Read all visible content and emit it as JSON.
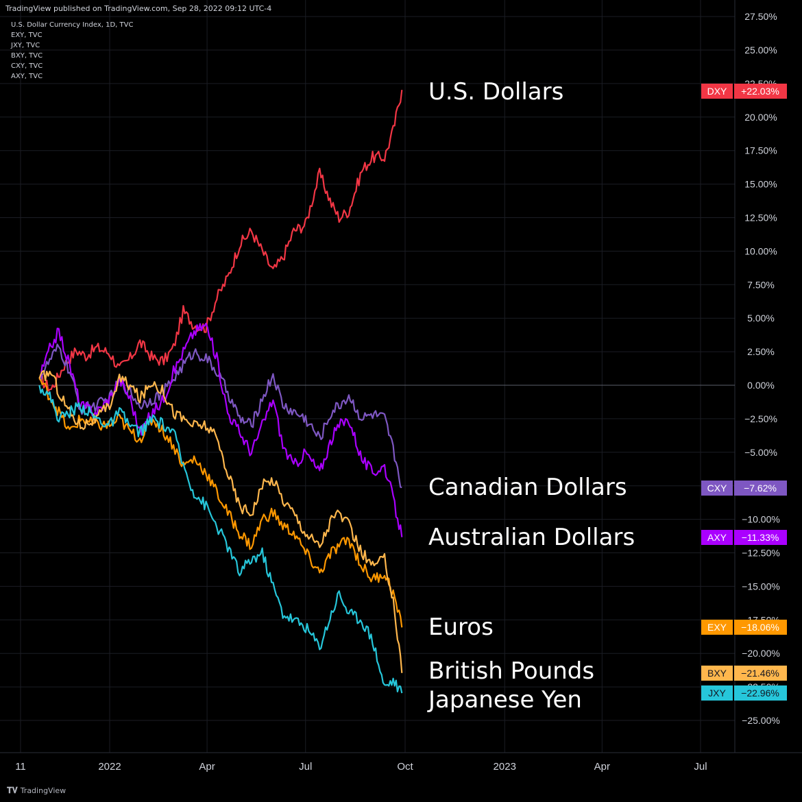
{
  "header": {
    "published": "TradingView published on TradingView.com, Sep 28, 2022 09:12 UTC-4",
    "symbols": [
      "U.S. Dollar Currency Index, 1D, TVC",
      "EXY, TVC",
      "JXY, TVC",
      "BXY, TVC",
      "CXY, TVC",
      "AXY, TVC"
    ]
  },
  "footer": {
    "brand": "TradingView",
    "logo": "tradingview-logo-icon"
  },
  "colors": {
    "background": "#000000",
    "grid": "#1b1d24",
    "zero_line": "#5d606b",
    "text": "#d1d4dc"
  },
  "chart_data": {
    "type": "line",
    "title": "",
    "xlabel": "",
    "ylabel": "",
    "y_unit": "%",
    "ylim": [
      -26,
      27
    ],
    "grid": true,
    "y_ticks": [
      "27.50%",
      "25.00%",
      "22.50%",
      "20.00%",
      "17.50%",
      "15.00%",
      "12.50%",
      "10.00%",
      "7.50%",
      "5.00%",
      "2.50%",
      "0.00%",
      "−2.50%",
      "−5.00%",
      "−7.50%",
      "−10.00%",
      "−12.50%",
      "−15.00%",
      "−17.50%",
      "−20.00%",
      "−22.50%",
      "−25.00%"
    ],
    "y_tick_values": [
      27.5,
      25,
      22.5,
      20,
      17.5,
      15,
      12.5,
      10,
      7.5,
      5,
      2.5,
      0,
      -2.5,
      -5,
      -7.5,
      -10,
      -12.5,
      -15,
      -17.5,
      -20,
      -22.5,
      -25
    ],
    "x_ticks": [
      "11",
      "2022",
      "Apr",
      "Jul",
      "Oct",
      "2023",
      "Apr",
      "Jul"
    ],
    "x_tick_dates": [
      "2021-11-01",
      "2022-01-01",
      "2022-04-01",
      "2022-07-01",
      "2022-10-01",
      "2023-01-01",
      "2023-04-01",
      "2023-07-01"
    ],
    "x_range": [
      "2021-10-28",
      "2023-08-25"
    ],
    "series": [
      {
        "name": "U.S. Dollars",
        "symbol": "DXY",
        "last": "+22.03%",
        "last_value": 22.03,
        "color": "#f23645",
        "points": [
          [
            "2021-10-28",
            0.5
          ],
          [
            "2021-11-08",
            -0.3
          ],
          [
            "2021-11-20",
            1.5
          ],
          [
            "2021-12-01",
            2.6
          ],
          [
            "2021-12-10",
            2.2
          ],
          [
            "2021-12-20",
            2.8
          ],
          [
            "2022-01-01",
            2.4
          ],
          [
            "2022-01-10",
            1.2
          ],
          [
            "2022-01-20",
            2.0
          ],
          [
            "2022-01-29",
            3.2
          ],
          [
            "2022-02-10",
            2.0
          ],
          [
            "2022-02-20",
            1.8
          ],
          [
            "2022-03-01",
            2.8
          ],
          [
            "2022-03-10",
            5.5
          ],
          [
            "2022-03-20",
            4.5
          ],
          [
            "2022-03-31",
            4.3
          ],
          [
            "2022-04-10",
            6.5
          ],
          [
            "2022-04-20",
            8.0
          ],
          [
            "2022-05-01",
            10.5
          ],
          [
            "2022-05-12",
            11.5
          ],
          [
            "2022-05-22",
            10.0
          ],
          [
            "2022-06-01",
            8.5
          ],
          [
            "2022-06-10",
            9.5
          ],
          [
            "2022-06-20",
            11.5
          ],
          [
            "2022-07-01",
            12.0
          ],
          [
            "2022-07-14",
            15.8
          ],
          [
            "2022-07-25",
            13.5
          ],
          [
            "2022-08-01",
            12.5
          ],
          [
            "2022-08-10",
            13.0
          ],
          [
            "2022-08-22",
            16.0
          ],
          [
            "2022-09-01",
            17.0
          ],
          [
            "2022-09-12",
            17.0
          ],
          [
            "2022-09-20",
            19.0
          ],
          [
            "2022-09-28",
            22.03
          ]
        ]
      },
      {
        "name": "Canadian Dollars",
        "symbol": "CXY",
        "last": "−7.62%",
        "last_value": -7.62,
        "color": "#7e57c2",
        "points": [
          [
            "2021-10-28",
            0.5
          ],
          [
            "2021-11-08",
            2.0
          ],
          [
            "2021-11-15",
            2.8
          ],
          [
            "2021-11-25",
            1.0
          ],
          [
            "2021-12-05",
            -1.8
          ],
          [
            "2021-12-20",
            -1.5
          ],
          [
            "2022-01-01",
            -1.0
          ],
          [
            "2022-01-10",
            0.3
          ],
          [
            "2022-01-20",
            -0.5
          ],
          [
            "2022-01-29",
            -1.5
          ],
          [
            "2022-02-10",
            -1.0
          ],
          [
            "2022-02-20",
            -0.5
          ],
          [
            "2022-03-01",
            0.5
          ],
          [
            "2022-03-10",
            1.5
          ],
          [
            "2022-03-20",
            2.5
          ],
          [
            "2022-03-31",
            2.0
          ],
          [
            "2022-04-10",
            1.0
          ],
          [
            "2022-04-20",
            -0.5
          ],
          [
            "2022-05-01",
            -2.5
          ],
          [
            "2022-05-12",
            -3.0
          ],
          [
            "2022-05-22",
            -1.0
          ],
          [
            "2022-06-01",
            0.8
          ],
          [
            "2022-06-10",
            -1.5
          ],
          [
            "2022-06-20",
            -2.0
          ],
          [
            "2022-07-01",
            -2.5
          ],
          [
            "2022-07-14",
            -4.0
          ],
          [
            "2022-07-25",
            -2.0
          ],
          [
            "2022-08-01",
            -1.5
          ],
          [
            "2022-08-10",
            -0.8
          ],
          [
            "2022-08-22",
            -2.5
          ],
          [
            "2022-09-01",
            -2.2
          ],
          [
            "2022-09-12",
            -2.5
          ],
          [
            "2022-09-20",
            -4.8
          ],
          [
            "2022-09-28",
            -7.62
          ]
        ]
      },
      {
        "name": "Australian Dollars",
        "symbol": "AXY",
        "last": "−11.33%",
        "last_value": -11.33,
        "color": "#aa00ff",
        "points": [
          [
            "2021-10-28",
            0.5
          ],
          [
            "2021-11-08",
            3.0
          ],
          [
            "2021-11-15",
            4.0
          ],
          [
            "2021-11-25",
            1.5
          ],
          [
            "2021-12-05",
            -1.5
          ],
          [
            "2021-12-20",
            -2.0
          ],
          [
            "2022-01-01",
            -1.0
          ],
          [
            "2022-01-10",
            0.5
          ],
          [
            "2022-01-20",
            -1.0
          ],
          [
            "2022-01-29",
            -3.5
          ],
          [
            "2022-02-10",
            -2.0
          ],
          [
            "2022-02-20",
            -1.0
          ],
          [
            "2022-03-01",
            1.0
          ],
          [
            "2022-03-10",
            2.5
          ],
          [
            "2022-03-20",
            4.0
          ],
          [
            "2022-03-31",
            4.5
          ],
          [
            "2022-04-10",
            2.0
          ],
          [
            "2022-04-20",
            -2.0
          ],
          [
            "2022-05-01",
            -3.5
          ],
          [
            "2022-05-12",
            -5.0
          ],
          [
            "2022-05-22",
            -3.0
          ],
          [
            "2022-06-01",
            -1.0
          ],
          [
            "2022-06-10",
            -4.5
          ],
          [
            "2022-06-20",
            -6.0
          ],
          [
            "2022-07-01",
            -5.0
          ],
          [
            "2022-07-14",
            -6.5
          ],
          [
            "2022-07-25",
            -4.0
          ],
          [
            "2022-08-01",
            -3.0
          ],
          [
            "2022-08-10",
            -2.5
          ],
          [
            "2022-08-22",
            -5.5
          ],
          [
            "2022-09-01",
            -6.5
          ],
          [
            "2022-09-12",
            -6.0
          ],
          [
            "2022-09-20",
            -8.5
          ],
          [
            "2022-09-28",
            -11.33
          ]
        ]
      },
      {
        "name": "Euros",
        "symbol": "EXY",
        "last": "−18.06%",
        "last_value": -18.06,
        "color": "#ff9800",
        "points": [
          [
            "2021-10-28",
            0.5
          ],
          [
            "2021-11-08",
            -1.0
          ],
          [
            "2021-11-15",
            -2.0
          ],
          [
            "2021-11-25",
            -3.5
          ],
          [
            "2021-12-05",
            -2.5
          ],
          [
            "2021-12-20",
            -3.0
          ],
          [
            "2022-01-01",
            -3.0
          ],
          [
            "2022-01-10",
            -2.5
          ],
          [
            "2022-01-20",
            -3.5
          ],
          [
            "2022-01-29",
            -4.0
          ],
          [
            "2022-02-10",
            -2.5
          ],
          [
            "2022-02-20",
            -3.5
          ],
          [
            "2022-03-01",
            -4.5
          ],
          [
            "2022-03-10",
            -6.0
          ],
          [
            "2022-03-20",
            -5.5
          ],
          [
            "2022-03-31",
            -6.5
          ],
          [
            "2022-04-10",
            -8.0
          ],
          [
            "2022-04-20",
            -9.5
          ],
          [
            "2022-05-01",
            -11.0
          ],
          [
            "2022-05-12",
            -12.0
          ],
          [
            "2022-05-22",
            -10.0
          ],
          [
            "2022-06-01",
            -9.5
          ],
          [
            "2022-06-10",
            -10.5
          ],
          [
            "2022-06-20",
            -11.0
          ],
          [
            "2022-07-01",
            -12.5
          ],
          [
            "2022-07-14",
            -14.0
          ],
          [
            "2022-07-25",
            -12.5
          ],
          [
            "2022-08-01",
            -12.0
          ],
          [
            "2022-08-10",
            -11.5
          ],
          [
            "2022-08-22",
            -13.5
          ],
          [
            "2022-09-01",
            -14.5
          ],
          [
            "2022-09-12",
            -14.0
          ],
          [
            "2022-09-20",
            -15.5
          ],
          [
            "2022-09-28",
            -18.06
          ]
        ]
      },
      {
        "name": "British Pounds",
        "symbol": "BXY",
        "last": "−21.46%",
        "last_value": -21.46,
        "color": "#ffb74d",
        "points": [
          [
            "2021-10-28",
            0.5
          ],
          [
            "2021-11-08",
            1.0
          ],
          [
            "2021-11-15",
            -0.5
          ],
          [
            "2021-11-25",
            -2.0
          ],
          [
            "2021-12-05",
            -3.0
          ],
          [
            "2021-12-20",
            -2.5
          ],
          [
            "2022-01-01",
            -1.5
          ],
          [
            "2022-01-10",
            0.5
          ],
          [
            "2022-01-20",
            0.0
          ],
          [
            "2022-01-29",
            -1.0
          ],
          [
            "2022-02-10",
            0.3
          ],
          [
            "2022-02-20",
            -0.5
          ],
          [
            "2022-03-01",
            -2.0
          ],
          [
            "2022-03-10",
            -2.5
          ],
          [
            "2022-03-20",
            -3.0
          ],
          [
            "2022-03-31",
            -3.0
          ],
          [
            "2022-04-10",
            -4.0
          ],
          [
            "2022-04-20",
            -6.5
          ],
          [
            "2022-05-01",
            -9.0
          ],
          [
            "2022-05-12",
            -9.5
          ],
          [
            "2022-05-22",
            -7.5
          ],
          [
            "2022-06-01",
            -7.0
          ],
          [
            "2022-06-10",
            -8.5
          ],
          [
            "2022-06-20",
            -9.5
          ],
          [
            "2022-07-01",
            -11.0
          ],
          [
            "2022-07-14",
            -12.0
          ],
          [
            "2022-07-25",
            -10.0
          ],
          [
            "2022-08-01",
            -9.5
          ],
          [
            "2022-08-10",
            -10.5
          ],
          [
            "2022-08-22",
            -12.5
          ],
          [
            "2022-09-01",
            -13.5
          ],
          [
            "2022-09-12",
            -13.0
          ],
          [
            "2022-09-20",
            -16.0
          ],
          [
            "2022-09-28",
            -21.46
          ]
        ]
      },
      {
        "name": "Japanese Yen",
        "symbol": "JXY",
        "last": "−22.96%",
        "last_value": -22.96,
        "color": "#26c6da",
        "points": [
          [
            "2021-10-28",
            0.0
          ],
          [
            "2021-11-08",
            -1.0
          ],
          [
            "2021-11-15",
            -2.5
          ],
          [
            "2021-11-25",
            -2.0
          ],
          [
            "2021-12-05",
            -1.5
          ],
          [
            "2021-12-20",
            -2.5
          ],
          [
            "2022-01-01",
            -3.0
          ],
          [
            "2022-01-10",
            -2.0
          ],
          [
            "2022-01-20",
            -3.0
          ],
          [
            "2022-01-29",
            -3.5
          ],
          [
            "2022-02-10",
            -2.5
          ],
          [
            "2022-02-20",
            -3.0
          ],
          [
            "2022-03-01",
            -3.5
          ],
          [
            "2022-03-10",
            -6.0
          ],
          [
            "2022-03-20",
            -8.0
          ],
          [
            "2022-03-31",
            -9.0
          ],
          [
            "2022-04-10",
            -10.5
          ],
          [
            "2022-04-20",
            -12.0
          ],
          [
            "2022-05-01",
            -14.0
          ],
          [
            "2022-05-12",
            -13.0
          ],
          [
            "2022-05-22",
            -12.5
          ],
          [
            "2022-06-01",
            -15.0
          ],
          [
            "2022-06-10",
            -17.0
          ],
          [
            "2022-06-20",
            -17.5
          ],
          [
            "2022-07-01",
            -18.0
          ],
          [
            "2022-07-14",
            -19.5
          ],
          [
            "2022-07-25",
            -17.0
          ],
          [
            "2022-08-01",
            -15.5
          ],
          [
            "2022-08-10",
            -17.0
          ],
          [
            "2022-08-22",
            -17.5
          ],
          [
            "2022-09-01",
            -19.0
          ],
          [
            "2022-09-12",
            -22.5
          ],
          [
            "2022-09-20",
            -22.0
          ],
          [
            "2022-09-28",
            -22.96
          ]
        ]
      }
    ]
  }
}
